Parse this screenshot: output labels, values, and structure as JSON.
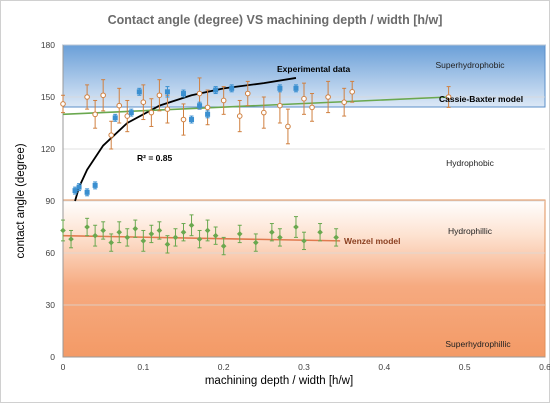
{
  "chart_data": {
    "type": "scatter",
    "title": "Contact angle (degree) VS machining depth / width [h/w]",
    "xlabel": "machining depth / width [h/w]",
    "ylabel": "contact angle (degree)",
    "xlim": [
      0,
      0.6
    ],
    "ylim": [
      0,
      180
    ],
    "x_ticks": [
      "0",
      "0.1",
      "0.2",
      "0.3",
      "0.4",
      "0.5",
      "0.6"
    ],
    "y_ticks": [
      "0",
      "30",
      "60",
      "90",
      "120",
      "150",
      "180"
    ],
    "grid": "horizontal",
    "regions": [
      {
        "label": "Superhydrophobic",
        "y_range": [
          145,
          180
        ],
        "color": "#6a9fd8"
      },
      {
        "label": "Hydrophobic",
        "y_range": [
          90,
          145
        ],
        "color": "#ffffff"
      },
      {
        "label": "Hydrophillic",
        "y_range": [
          60,
          90
        ],
        "color": "#ffffff"
      },
      {
        "label": "Superhydrophillic",
        "y_range": [
          0,
          90
        ],
        "color": "#f4a06c"
      }
    ],
    "annotations": {
      "experimental": "Experimental data",
      "cassie": "Cassie-Baxter model",
      "r2": "R² = 0.85",
      "wenzel": "Wenzel model"
    },
    "series": [
      {
        "name": "Experimental data",
        "color": "#3a8fd0",
        "points": [
          {
            "x": 0.015,
            "y": 96,
            "err": 2
          },
          {
            "x": 0.02,
            "y": 98,
            "err": 2
          },
          {
            "x": 0.03,
            "y": 95,
            "err": 2
          },
          {
            "x": 0.04,
            "y": 99,
            "err": 2
          },
          {
            "x": 0.065,
            "y": 138,
            "err": 2
          },
          {
            "x": 0.085,
            "y": 141,
            "err": 2
          },
          {
            "x": 0.095,
            "y": 153,
            "err": 2
          },
          {
            "x": 0.13,
            "y": 153,
            "err": 3
          },
          {
            "x": 0.15,
            "y": 152,
            "err": 2
          },
          {
            "x": 0.16,
            "y": 137,
            "err": 2
          },
          {
            "x": 0.17,
            "y": 145,
            "err": 2
          },
          {
            "x": 0.18,
            "y": 140,
            "err": 2
          },
          {
            "x": 0.19,
            "y": 154,
            "err": 2
          },
          {
            "x": 0.21,
            "y": 155,
            "err": 2
          },
          {
            "x": 0.27,
            "y": 155,
            "err": 2
          },
          {
            "x": 0.29,
            "y": 155,
            "err": 2
          }
        ]
      },
      {
        "name": "Cassie-Baxter model",
        "color": "#d08040",
        "points": [
          {
            "x": 0.0,
            "y": 146,
            "err": 5
          },
          {
            "x": 0.03,
            "y": 150,
            "err": 7
          },
          {
            "x": 0.04,
            "y": 140,
            "err": 8
          },
          {
            "x": 0.05,
            "y": 151,
            "err": 9
          },
          {
            "x": 0.06,
            "y": 128,
            "err": 8
          },
          {
            "x": 0.07,
            "y": 145,
            "err": 10
          },
          {
            "x": 0.08,
            "y": 139,
            "err": 9
          },
          {
            "x": 0.1,
            "y": 147,
            "err": 10
          },
          {
            "x": 0.11,
            "y": 141,
            "err": 8
          },
          {
            "x": 0.12,
            "y": 151,
            "err": 9
          },
          {
            "x": 0.13,
            "y": 143,
            "err": 8
          },
          {
            "x": 0.15,
            "y": 137,
            "err": 9
          },
          {
            "x": 0.17,
            "y": 152,
            "err": 9
          },
          {
            "x": 0.18,
            "y": 144,
            "err": 10
          },
          {
            "x": 0.2,
            "y": 148,
            "err": 8
          },
          {
            "x": 0.22,
            "y": 139,
            "err": 9
          },
          {
            "x": 0.23,
            "y": 152,
            "err": 7
          },
          {
            "x": 0.25,
            "y": 141,
            "err": 9
          },
          {
            "x": 0.27,
            "y": 145,
            "err": 10
          },
          {
            "x": 0.28,
            "y": 133,
            "err": 10
          },
          {
            "x": 0.3,
            "y": 149,
            "err": 9
          },
          {
            "x": 0.31,
            "y": 144,
            "err": 8
          },
          {
            "x": 0.33,
            "y": 150,
            "err": 9
          },
          {
            "x": 0.35,
            "y": 147,
            "err": 8
          },
          {
            "x": 0.36,
            "y": 153,
            "err": 6
          },
          {
            "x": 0.48,
            "y": 150,
            "err": 6
          }
        ]
      },
      {
        "name": "Wenzel model",
        "color": "#6aa84f",
        "points": [
          {
            "x": 0.0,
            "y": 73,
            "err": 6
          },
          {
            "x": 0.01,
            "y": 68,
            "err": 5
          },
          {
            "x": 0.03,
            "y": 75,
            "err": 5
          },
          {
            "x": 0.04,
            "y": 70,
            "err": 6
          },
          {
            "x": 0.05,
            "y": 73,
            "err": 5
          },
          {
            "x": 0.06,
            "y": 66,
            "err": 5
          },
          {
            "x": 0.07,
            "y": 72,
            "err": 6
          },
          {
            "x": 0.08,
            "y": 69,
            "err": 5
          },
          {
            "x": 0.09,
            "y": 74,
            "err": 5
          },
          {
            "x": 0.1,
            "y": 67,
            "err": 6
          },
          {
            "x": 0.11,
            "y": 71,
            "err": 5
          },
          {
            "x": 0.12,
            "y": 73,
            "err": 5
          },
          {
            "x": 0.13,
            "y": 65,
            "err": 5
          },
          {
            "x": 0.14,
            "y": 69,
            "err": 5
          },
          {
            "x": 0.15,
            "y": 72,
            "err": 5
          },
          {
            "x": 0.16,
            "y": 76,
            "err": 6
          },
          {
            "x": 0.17,
            "y": 68,
            "err": 5
          },
          {
            "x": 0.18,
            "y": 73,
            "err": 6
          },
          {
            "x": 0.19,
            "y": 70,
            "err": 5
          },
          {
            "x": 0.2,
            "y": 64,
            "err": 5
          },
          {
            "x": 0.22,
            "y": 71,
            "err": 5
          },
          {
            "x": 0.24,
            "y": 66,
            "err": 5
          },
          {
            "x": 0.26,
            "y": 72,
            "err": 5
          },
          {
            "x": 0.27,
            "y": 69,
            "err": 5
          },
          {
            "x": 0.29,
            "y": 75,
            "err": 6
          },
          {
            "x": 0.3,
            "y": 67,
            "err": 5
          },
          {
            "x": 0.32,
            "y": 72,
            "err": 5
          },
          {
            "x": 0.34,
            "y": 69,
            "err": 5
          }
        ]
      }
    ],
    "fits": [
      {
        "name": "Experimental data",
        "color": "#000000",
        "x": [
          0.015,
          0.02,
          0.03,
          0.05,
          0.08,
          0.12,
          0.16,
          0.2,
          0.25,
          0.29
        ],
        "y": [
          90,
          98,
          108,
          122,
          135,
          145,
          151,
          155,
          158,
          161
        ]
      },
      {
        "name": "Cassie-Baxter model",
        "color": "#6aa84f",
        "x": [
          0.0,
          0.48
        ],
        "y": [
          140,
          150
        ]
      },
      {
        "name": "Wenzel model",
        "color": "#e07a4f",
        "x": [
          0.0,
          0.345
        ],
        "y": [
          70,
          67
        ]
      }
    ]
  }
}
